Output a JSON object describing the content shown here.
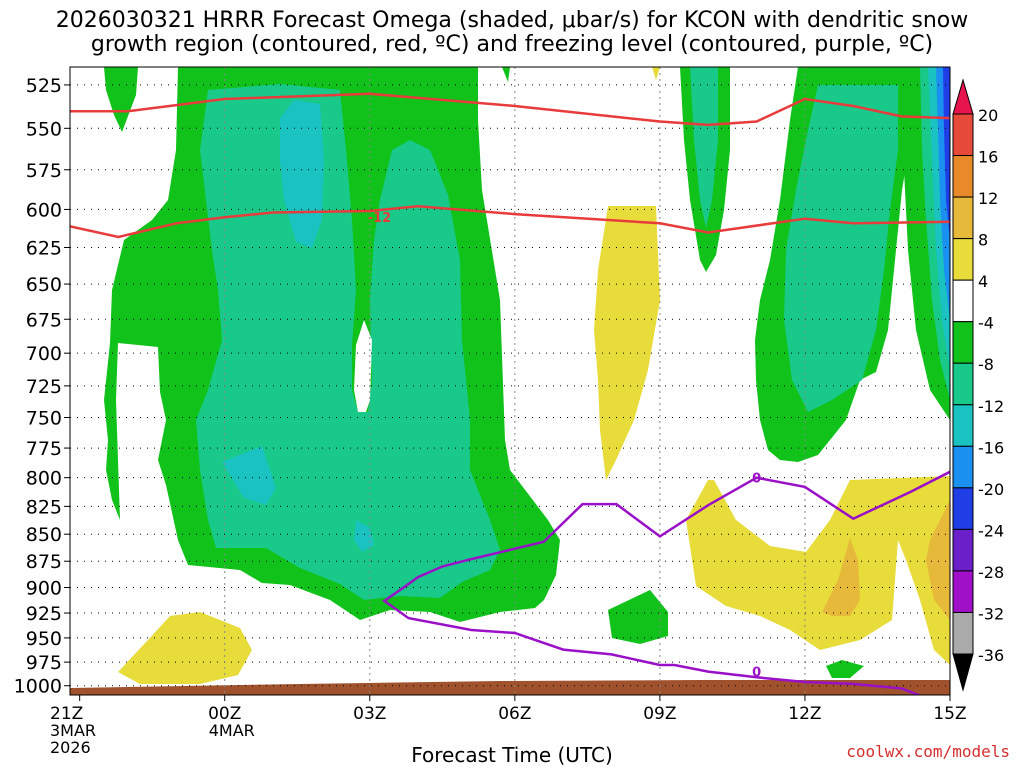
{
  "page": {
    "title_line1": "2026030321 HRRR Forecast Omega (shaded, μbar/s) for KCON with dendritic snow",
    "title_line2": "growth region (contoured, red, ºC) and freezing level (contoured, purple, ºC)",
    "credit": "coolwx.com/models"
  },
  "chart_data": {
    "type": "time-height cross section",
    "xlabel": "Forecast Time (UTC)",
    "ylabel": "",
    "x_ticks": [
      {
        "hour": 0,
        "label": "21Z",
        "sub1": "3MAR",
        "sub2": "2026"
      },
      {
        "hour": 3,
        "label": "00Z",
        "sub1": "4MAR",
        "sub2": ""
      },
      {
        "hour": 6,
        "label": "03Z",
        "sub1": "",
        "sub2": ""
      },
      {
        "hour": 9,
        "label": "06Z",
        "sub1": "",
        "sub2": ""
      },
      {
        "hour": 12,
        "label": "09Z",
        "sub1": "",
        "sub2": ""
      },
      {
        "hour": 15,
        "label": "12Z",
        "sub1": "",
        "sub2": ""
      },
      {
        "hour": 18,
        "label": "15Z",
        "sub1": "",
        "sub2": ""
      }
    ],
    "xlim": [
      -0.2,
      18.0
    ],
    "y_levels_hpa": [
      525,
      550,
      575,
      600,
      625,
      650,
      675,
      700,
      725,
      750,
      775,
      800,
      825,
      850,
      875,
      900,
      925,
      950,
      975,
      1000
    ],
    "ylim": [
      515,
      1010
    ],
    "y_scale": "log-pressure (inverted)",
    "grid": true,
    "colorbar": {
      "levels": [
        "20",
        "16",
        "12",
        "8",
        "4",
        "-4",
        "-8",
        "-12",
        "-16",
        "-20",
        "-24",
        "-28",
        "-32",
        "-36"
      ],
      "colors": [
        "#e8144d",
        "#e84a3a",
        "#e88a2a",
        "#e6b93a",
        "#e8dc3a",
        "#ffffff",
        "#10c21a",
        "#19c98a",
        "#1ac2c2",
        "#1a90f0",
        "#1f3ee6",
        "#6a1fc8",
        "#a010c8",
        "#aaaaaa",
        "#000000"
      ]
    },
    "contours": {
      "dgz_label": "-12",
      "freezing_label": "0"
    },
    "dgz_top": [
      [
        -0.2,
        540
      ],
      [
        1,
        540
      ],
      [
        3,
        533
      ],
      [
        6,
        530
      ],
      [
        9,
        537
      ],
      [
        12,
        546
      ],
      [
        13,
        548
      ],
      [
        14,
        546
      ],
      [
        15,
        533
      ],
      [
        16,
        537
      ],
      [
        17,
        543
      ],
      [
        18,
        544
      ]
    ],
    "dgz_bottom": [
      [
        -0.2,
        611
      ],
      [
        0.8,
        618
      ],
      [
        2,
        609
      ],
      [
        3,
        605
      ],
      [
        4,
        602
      ],
      [
        6,
        601
      ],
      [
        7,
        598
      ],
      [
        9,
        603
      ],
      [
        12,
        609
      ],
      [
        13,
        615
      ],
      [
        15,
        606
      ],
      [
        16,
        609
      ],
      [
        18,
        608
      ]
    ],
    "freezing_level": [
      [
        8.1,
        873
      ],
      [
        7.5,
        880
      ],
      [
        7,
        890
      ],
      [
        6.7,
        900
      ],
      [
        6.3,
        913
      ],
      [
        6.8,
        930
      ],
      [
        8.1,
        942
      ],
      [
        9,
        945
      ],
      [
        10,
        962
      ],
      [
        11,
        967
      ],
      [
        12,
        978
      ],
      [
        12.3,
        978
      ],
      [
        13,
        985
      ],
      [
        14,
        991
      ],
      [
        15,
        996
      ],
      [
        16,
        998
      ],
      [
        17,
        1003
      ],
      [
        17.4,
        1011
      ]
    ],
    "freezing_upper": [
      [
        8.1,
        873
      ],
      [
        9.6,
        857
      ],
      [
        10.4,
        823
      ],
      [
        11.1,
        823
      ],
      [
        12.0,
        852
      ],
      [
        13.0,
        824
      ],
      [
        14,
        800
      ],
      [
        15,
        808
      ],
      [
        16,
        836
      ],
      [
        17.2,
        812
      ],
      [
        18,
        795
      ]
    ],
    "series": []
  }
}
